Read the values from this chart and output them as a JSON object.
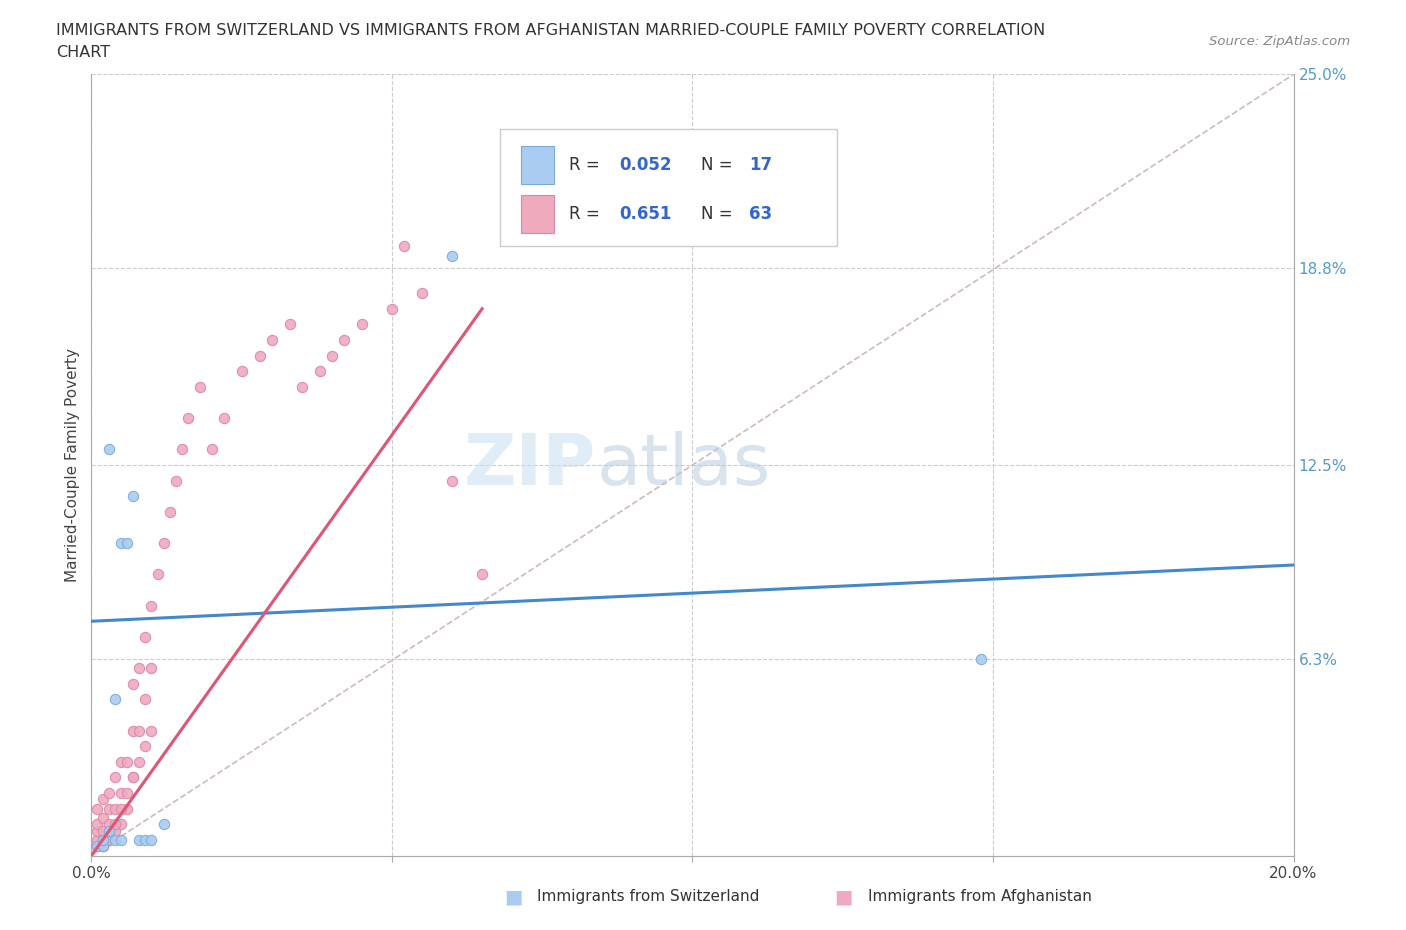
{
  "title_line1": "IMMIGRANTS FROM SWITZERLAND VS IMMIGRANTS FROM AFGHANISTAN MARRIED-COUPLE FAMILY POVERTY CORRELATION",
  "title_line2": "CHART",
  "source_text": "Source: ZipAtlas.com",
  "ylabel": "Married-Couple Family Poverty",
  "xlim": [
    0.0,
    0.2
  ],
  "ylim": [
    0.0,
    0.25
  ],
  "xtick_vals": [
    0.0,
    0.05,
    0.1,
    0.15,
    0.2
  ],
  "xtick_labels": [
    "0.0%",
    "",
    "",
    "",
    "20.0%"
  ],
  "ytick_right_vals": [
    0.0,
    0.063,
    0.125,
    0.188,
    0.25
  ],
  "ytick_right_labels": [
    "",
    "6.3%",
    "12.5%",
    "18.8%",
    "25.0%"
  ],
  "color_switzerland": "#aaccf0",
  "color_afghanistan": "#f0aabe",
  "color_edge_switzerland": "#7aaad8",
  "color_edge_afghanistan": "#d888aa",
  "color_line_switzerland": "#4488cc",
  "color_line_afghanistan": "#dd5577",
  "color_diagonal": "#ccbbbb",
  "color_grid": "#cccccc",
  "watermark_zip": "ZIP",
  "watermark_atlas": "atlas",
  "swiss_x": [
    0.001,
    0.002,
    0.002,
    0.003,
    0.004,
    0.004,
    0.005,
    0.005,
    0.006,
    0.007,
    0.008,
    0.009,
    0.01,
    0.012,
    0.06,
    0.148,
    0.003
  ],
  "swiss_y": [
    0.003,
    0.003,
    0.005,
    0.008,
    0.005,
    0.05,
    0.005,
    0.1,
    0.1,
    0.115,
    0.005,
    0.005,
    0.005,
    0.01,
    0.192,
    0.063,
    0.13
  ],
  "afghan_x": [
    0.001,
    0.001,
    0.001,
    0.001,
    0.001,
    0.002,
    0.002,
    0.002,
    0.002,
    0.002,
    0.003,
    0.003,
    0.003,
    0.003,
    0.004,
    0.004,
    0.004,
    0.005,
    0.005,
    0.005,
    0.006,
    0.006,
    0.007,
    0.007,
    0.007,
    0.008,
    0.008,
    0.009,
    0.009,
    0.01,
    0.01,
    0.011,
    0.012,
    0.013,
    0.014,
    0.015,
    0.016,
    0.018,
    0.02,
    0.022,
    0.025,
    0.028,
    0.03,
    0.033,
    0.035,
    0.038,
    0.04,
    0.042,
    0.045,
    0.05,
    0.052,
    0.055,
    0.06,
    0.065,
    0.002,
    0.003,
    0.004,
    0.005,
    0.006,
    0.007,
    0.008,
    0.009,
    0.01
  ],
  "afghan_y": [
    0.003,
    0.005,
    0.008,
    0.01,
    0.015,
    0.003,
    0.005,
    0.008,
    0.012,
    0.018,
    0.005,
    0.01,
    0.015,
    0.02,
    0.008,
    0.015,
    0.025,
    0.01,
    0.02,
    0.03,
    0.015,
    0.03,
    0.025,
    0.04,
    0.055,
    0.04,
    0.06,
    0.05,
    0.07,
    0.06,
    0.08,
    0.09,
    0.1,
    0.11,
    0.12,
    0.13,
    0.14,
    0.15,
    0.13,
    0.14,
    0.155,
    0.16,
    0.165,
    0.17,
    0.15,
    0.155,
    0.16,
    0.165,
    0.17,
    0.175,
    0.195,
    0.18,
    0.12,
    0.09,
    0.003,
    0.005,
    0.01,
    0.015,
    0.02,
    0.025,
    0.03,
    0.035,
    0.04
  ],
  "swiss_line_x": [
    0.0,
    0.2
  ],
  "swiss_line_y": [
    0.075,
    0.093
  ],
  "afghan_line_x": [
    0.0,
    0.065
  ],
  "afghan_line_y": [
    0.0,
    0.175
  ]
}
